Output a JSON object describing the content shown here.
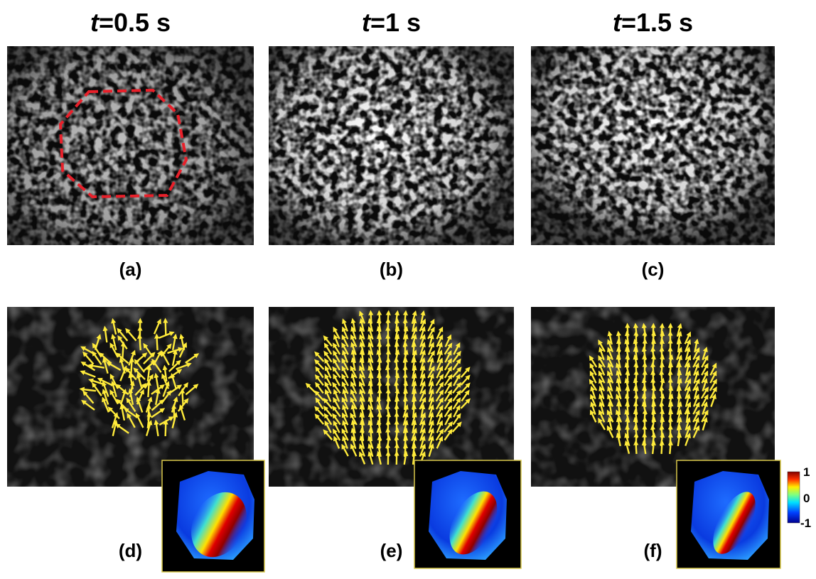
{
  "columns": [
    {
      "title": {
        "var": "t",
        "rest": "=0.5 s"
      },
      "top_label": "(a)",
      "bottom_label": "(d)"
    },
    {
      "title": {
        "var": "t",
        "rest": "=1 s"
      },
      "top_label": "(b)",
      "bottom_label": "(e)"
    },
    {
      "title": {
        "var": "t",
        "rest": "=1.5 s"
      },
      "top_label": "(c)",
      "bottom_label": "(f)"
    }
  ],
  "colorbar": {
    "max": "1",
    "mid": "0",
    "min": "-1"
  }
}
